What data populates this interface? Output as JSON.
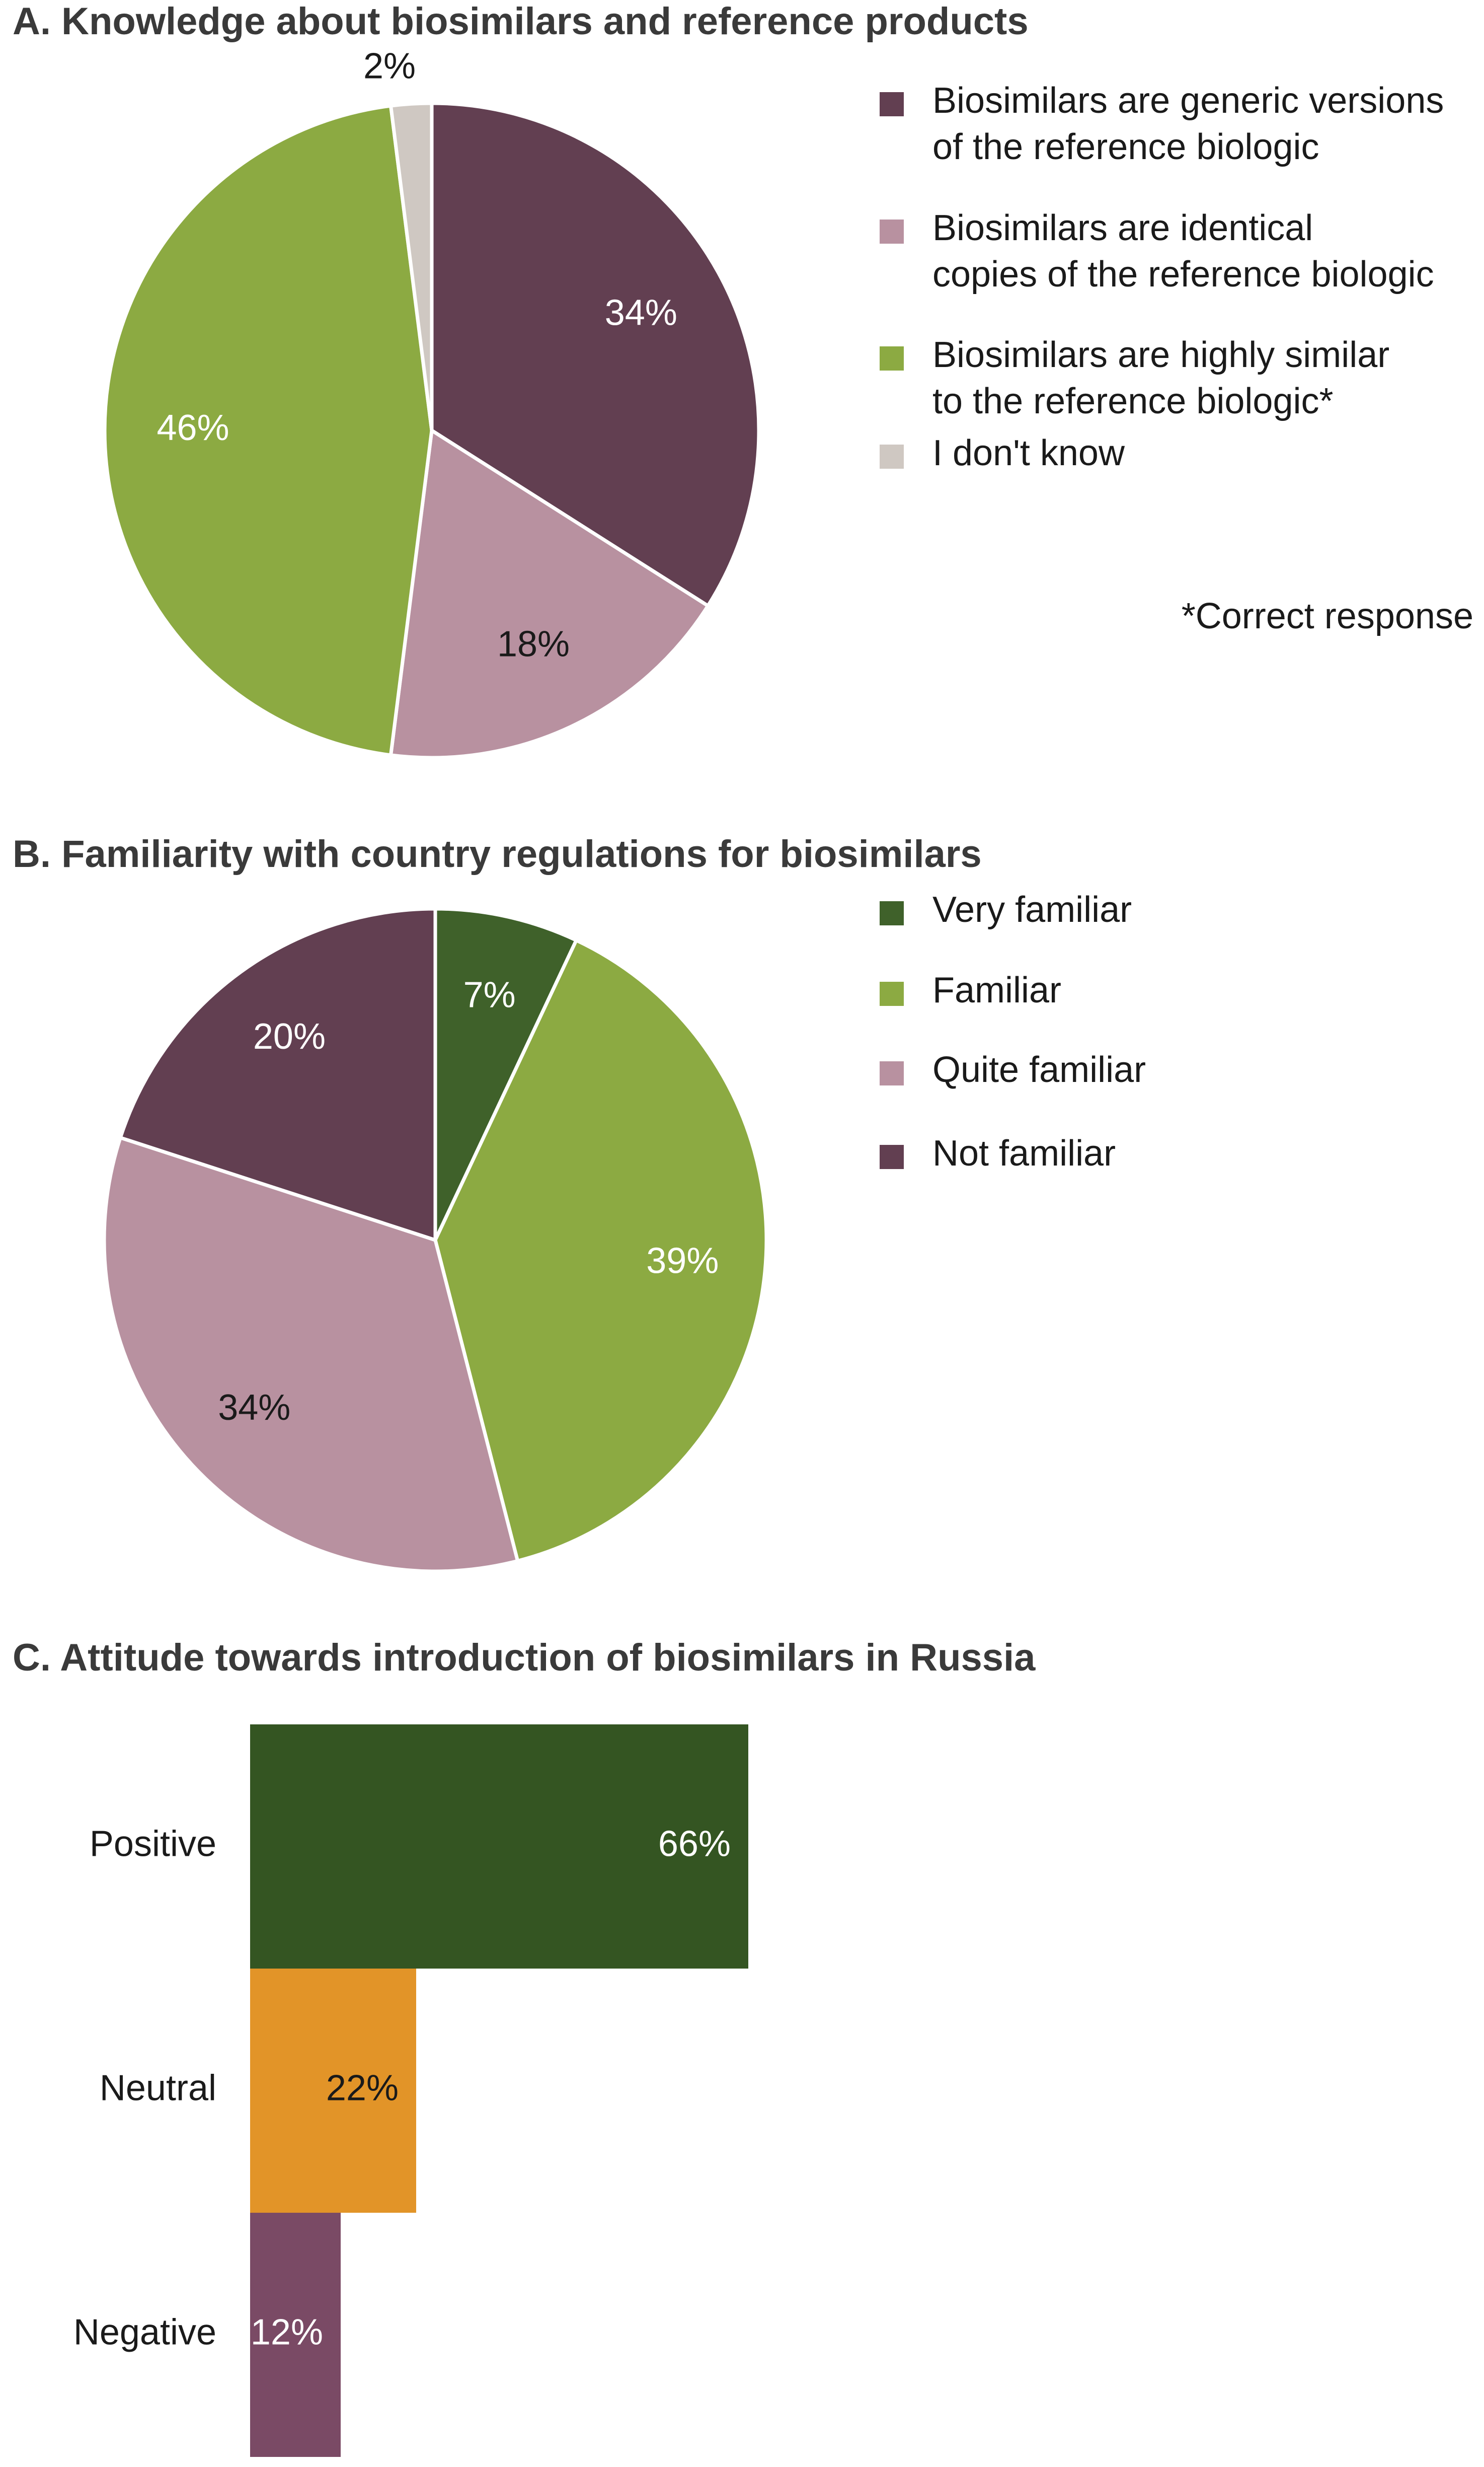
{
  "chart_data": [
    {
      "type": "pie",
      "title": "A. Knowledge about biosimilars and reference products",
      "slices": [
        {
          "label": [
            "Biosimilars are generic versions",
            "of the reference biologic"
          ],
          "value": 34,
          "display": "34%",
          "color": "#623f51",
          "label_color": "#ffffff"
        },
        {
          "label": [
            "Biosimilars are identical",
            "copies of the reference biologic"
          ],
          "value": 18,
          "display": "18%",
          "color": "#b891a0",
          "label_color": "#1a1a1a"
        },
        {
          "label": [
            "Biosimilars are highly similar",
            "to the reference biologic*"
          ],
          "value": 46,
          "display": "46%",
          "color": "#8caa42",
          "label_color": "#ffffff"
        },
        {
          "label": [
            "I don't know"
          ],
          "value": 2,
          "display": "2%",
          "color": "#cfc8c2",
          "label_color": "#1a1a1a"
        }
      ],
      "note": "*Correct response"
    },
    {
      "type": "pie",
      "title": "B. Familiarity with country regulations for biosimilars",
      "slices": [
        {
          "label": [
            "Very familiar"
          ],
          "value": 7,
          "display": "7%",
          "color": "#3f612a",
          "label_color": "#ffffff"
        },
        {
          "label": [
            "Familiar"
          ],
          "value": 39,
          "display": "39%",
          "color": "#8caa42",
          "label_color": "#ffffff"
        },
        {
          "label": [
            "Quite familiar"
          ],
          "value": 34,
          "display": "34%",
          "color": "#b891a0",
          "label_color": "#1a1a1a"
        },
        {
          "label": [
            "Not familiar"
          ],
          "value": 20,
          "display": "20%",
          "color": "#623f51",
          "label_color": "#ffffff"
        }
      ]
    },
    {
      "type": "bar",
      "orientation": "horizontal",
      "title": "C. Attitude towards introduction of biosimilars in Russia",
      "categories": [
        "Positive",
        "Neutral",
        "Negative"
      ],
      "values": [
        66,
        22,
        12
      ],
      "displays": [
        "66%",
        "22%",
        "12%"
      ],
      "colors": [
        "#345522",
        "#e29428",
        "#7a4a65"
      ],
      "label_colors": [
        "#ffffff",
        "#1a1a1a",
        "#ffffff"
      ],
      "xlim": [
        0,
        100
      ],
      "axis_line": true
    }
  ]
}
